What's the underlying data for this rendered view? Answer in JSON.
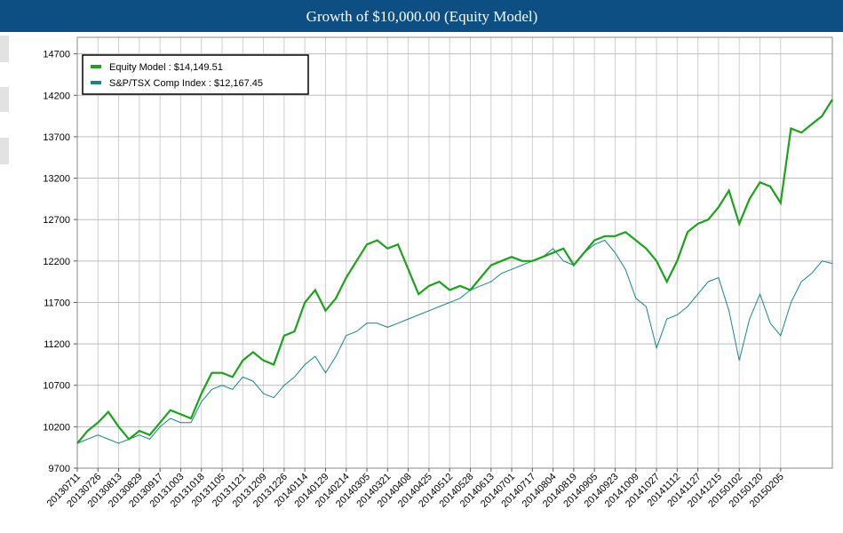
{
  "chart_data": {
    "type": "line",
    "title": "Growth of $10,000.00 (Equity Model)",
    "categories": [
      "20130711",
      null,
      "20130726",
      null,
      "20130813",
      null,
      "20130829",
      null,
      "20130917",
      null,
      "20131003",
      null,
      "20131018",
      null,
      "20131105",
      null,
      "20131121",
      null,
      "20131209",
      null,
      "20131226",
      null,
      "20140114",
      null,
      "20140129",
      null,
      "20140214",
      null,
      "20140305",
      null,
      "20140321",
      null,
      "20140408",
      null,
      "20140425",
      null,
      "20140512",
      null,
      "20140528",
      null,
      "20140613",
      null,
      "20140701",
      null,
      "20140717",
      null,
      "20140804",
      null,
      "20140819",
      null,
      "20140905",
      null,
      "20140923",
      null,
      "20141009",
      null,
      "20141027",
      null,
      "20141112",
      null,
      "20141127",
      null,
      "20141215",
      null,
      "20150102",
      null,
      "20150120",
      null,
      "20150205",
      null,
      null,
      null,
      null,
      null
    ],
    "series": [
      {
        "name": "Equity Model : $14,149.51",
        "color": "#1aa31a",
        "values": [
          10000,
          10150,
          10250,
          10380,
          10200,
          10050,
          10150,
          10100,
          10250,
          10400,
          10350,
          10300,
          10600,
          10850,
          10850,
          10800,
          11000,
          11100,
          11000,
          10950,
          11300,
          11350,
          11700,
          11850,
          11600,
          11750,
          12000,
          12200,
          12400,
          12450,
          12350,
          12400,
          12100,
          11800,
          11900,
          11950,
          11850,
          11900,
          11850,
          12000,
          12150,
          12200,
          12250,
          12200,
          12200,
          12250,
          12300,
          12350,
          12150,
          12300,
          12450,
          12500,
          12500,
          12550,
          12450,
          12350,
          12200,
          11950,
          12200,
          12550,
          12650,
          12700,
          12850,
          13050,
          12650,
          12950,
          13150,
          13100,
          12900,
          13800,
          13750,
          13850,
          13950,
          14150
        ]
      },
      {
        "name": "S&P/TSX Comp Index : $12,167.45",
        "color": "#14868c",
        "values": [
          10000,
          10050,
          10100,
          10050,
          10000,
          10050,
          10100,
          10050,
          10200,
          10300,
          10250,
          10250,
          10500,
          10650,
          10700,
          10650,
          10800,
          10750,
          10600,
          10550,
          10700,
          10800,
          10950,
          11050,
          10850,
          11050,
          11300,
          11350,
          11450,
          11450,
          11400,
          11450,
          11500,
          11550,
          11600,
          11650,
          11700,
          11750,
          11850,
          11900,
          11950,
          12050,
          12100,
          12150,
          12200,
          12250,
          12350,
          12200,
          12150,
          12300,
          12400,
          12450,
          12300,
          12100,
          11750,
          11650,
          11150,
          11500,
          11550,
          11650,
          11800,
          11950,
          12000,
          11600,
          11000,
          11500,
          11800,
          11450,
          11300,
          11700,
          11950,
          12050,
          12200,
          12170
        ]
      }
    ],
    "ylim": [
      9700,
      14900
    ],
    "yticks": [
      9700,
      10200,
      10700,
      11200,
      11700,
      12200,
      12700,
      13200,
      13700,
      14200,
      14700
    ],
    "grid": true,
    "legend": "upper left"
  }
}
